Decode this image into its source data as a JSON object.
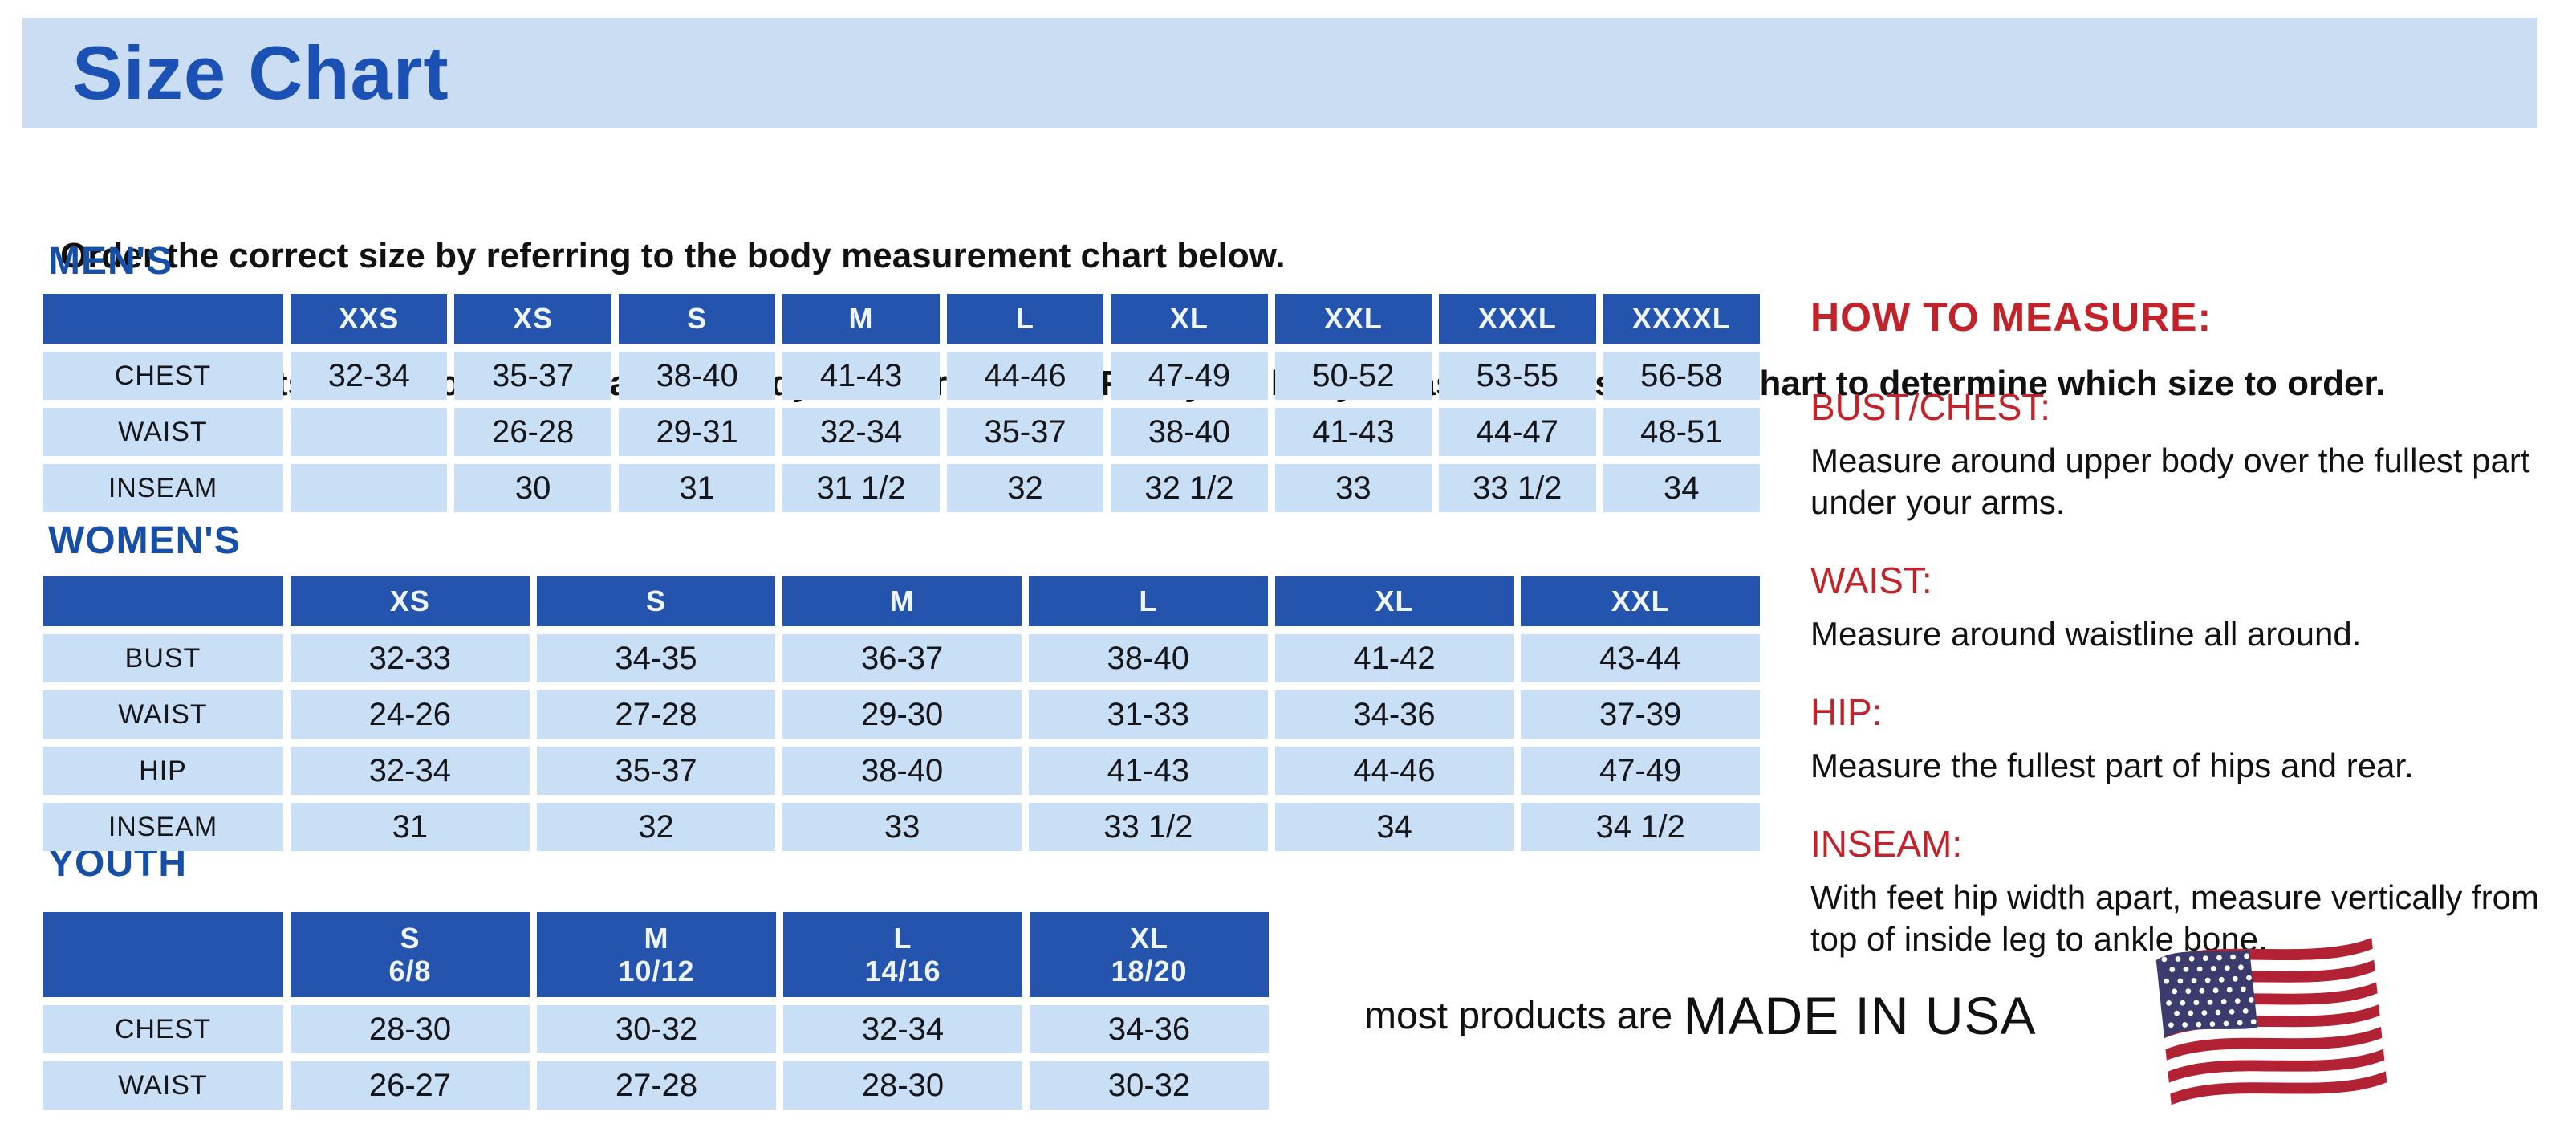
{
  "page": {
    "title": "Size Chart",
    "intro_line1": "Order the correct size by referring to the body measurement chart below.",
    "intro_line2": "Measurements shown on size chart are body measurements.  Find your body measurements on the chart to determine which size to order."
  },
  "colors": {
    "banner_bg": "#CBDDF3",
    "title_blue": "#1B51B5",
    "section_blue": "#164FA8",
    "table_header_bg": "#2454AE",
    "table_cell_bg": "#C9DFF6",
    "accent_red": "#C2232B",
    "flag_red": "#B22234",
    "flag_navy": "#3C3B6E"
  },
  "tables": {
    "mens": {
      "label": "MEN'S",
      "columns": [
        "XXS",
        "XS",
        "S",
        "M",
        "L",
        "XL",
        "XXL",
        "XXXL",
        "XXXXL"
      ],
      "rows": [
        {
          "label": "CHEST",
          "values": [
            "32-34",
            "35-37",
            "38-40",
            "41-43",
            "44-46",
            "47-49",
            "50-52",
            "53-55",
            "56-58"
          ]
        },
        {
          "label": "WAIST",
          "values": [
            "",
            "26-28",
            "29-31",
            "32-34",
            "35-37",
            "38-40",
            "41-43",
            "44-47",
            "48-51"
          ]
        },
        {
          "label": "INSEAM",
          "values": [
            "",
            "30",
            "31",
            "31 1/2",
            "32",
            "32 1/2",
            "33",
            "33 1/2",
            "34"
          ]
        }
      ]
    },
    "womens": {
      "label": "WOMEN'S",
      "columns": [
        "XS",
        "S",
        "M",
        "L",
        "XL",
        "XXL"
      ],
      "rows": [
        {
          "label": "BUST",
          "values": [
            "32-33",
            "34-35",
            "36-37",
            "38-40",
            "41-42",
            "43-44"
          ]
        },
        {
          "label": "WAIST",
          "values": [
            "24-26",
            "27-28",
            "29-30",
            "31-33",
            "34-36",
            "37-39"
          ]
        },
        {
          "label": "HIP",
          "values": [
            "32-34",
            "35-37",
            "38-40",
            "41-43",
            "44-46",
            "47-49"
          ]
        },
        {
          "label": "INSEAM",
          "values": [
            "31",
            "32",
            "33",
            "33 1/2",
            "34",
            "34 1/2"
          ]
        }
      ]
    },
    "youth": {
      "label": "YOUTH",
      "columns": [
        {
          "size": "S",
          "detail": "6/8"
        },
        {
          "size": "M",
          "detail": "10/12"
        },
        {
          "size": "L",
          "detail": "14/16"
        },
        {
          "size": "XL",
          "detail": "18/20"
        }
      ],
      "rows": [
        {
          "label": "CHEST",
          "values": [
            "28-30",
            "30-32",
            "32-34",
            "34-36"
          ]
        },
        {
          "label": "WAIST",
          "values": [
            "26-27",
            "27-28",
            "28-30",
            "30-32"
          ]
        }
      ]
    }
  },
  "how_to_measure": {
    "title": "HOW TO MEASURE:",
    "sections": [
      {
        "heading": "BUST/CHEST:",
        "text": "Measure around upper body over the fullest part under your arms."
      },
      {
        "heading": "WAIST:",
        "text": "Measure around waistline all around."
      },
      {
        "heading": "HIP:",
        "text": "Measure the fullest part of hips and rear."
      },
      {
        "heading": "INSEAM:",
        "text": "With feet hip width apart, measure vertically from top of inside leg to ankle bone."
      }
    ]
  },
  "footer": {
    "prefix": "most products are ",
    "emphasis": "MADE IN USA",
    "flag_icon": "us-flag-icon"
  }
}
